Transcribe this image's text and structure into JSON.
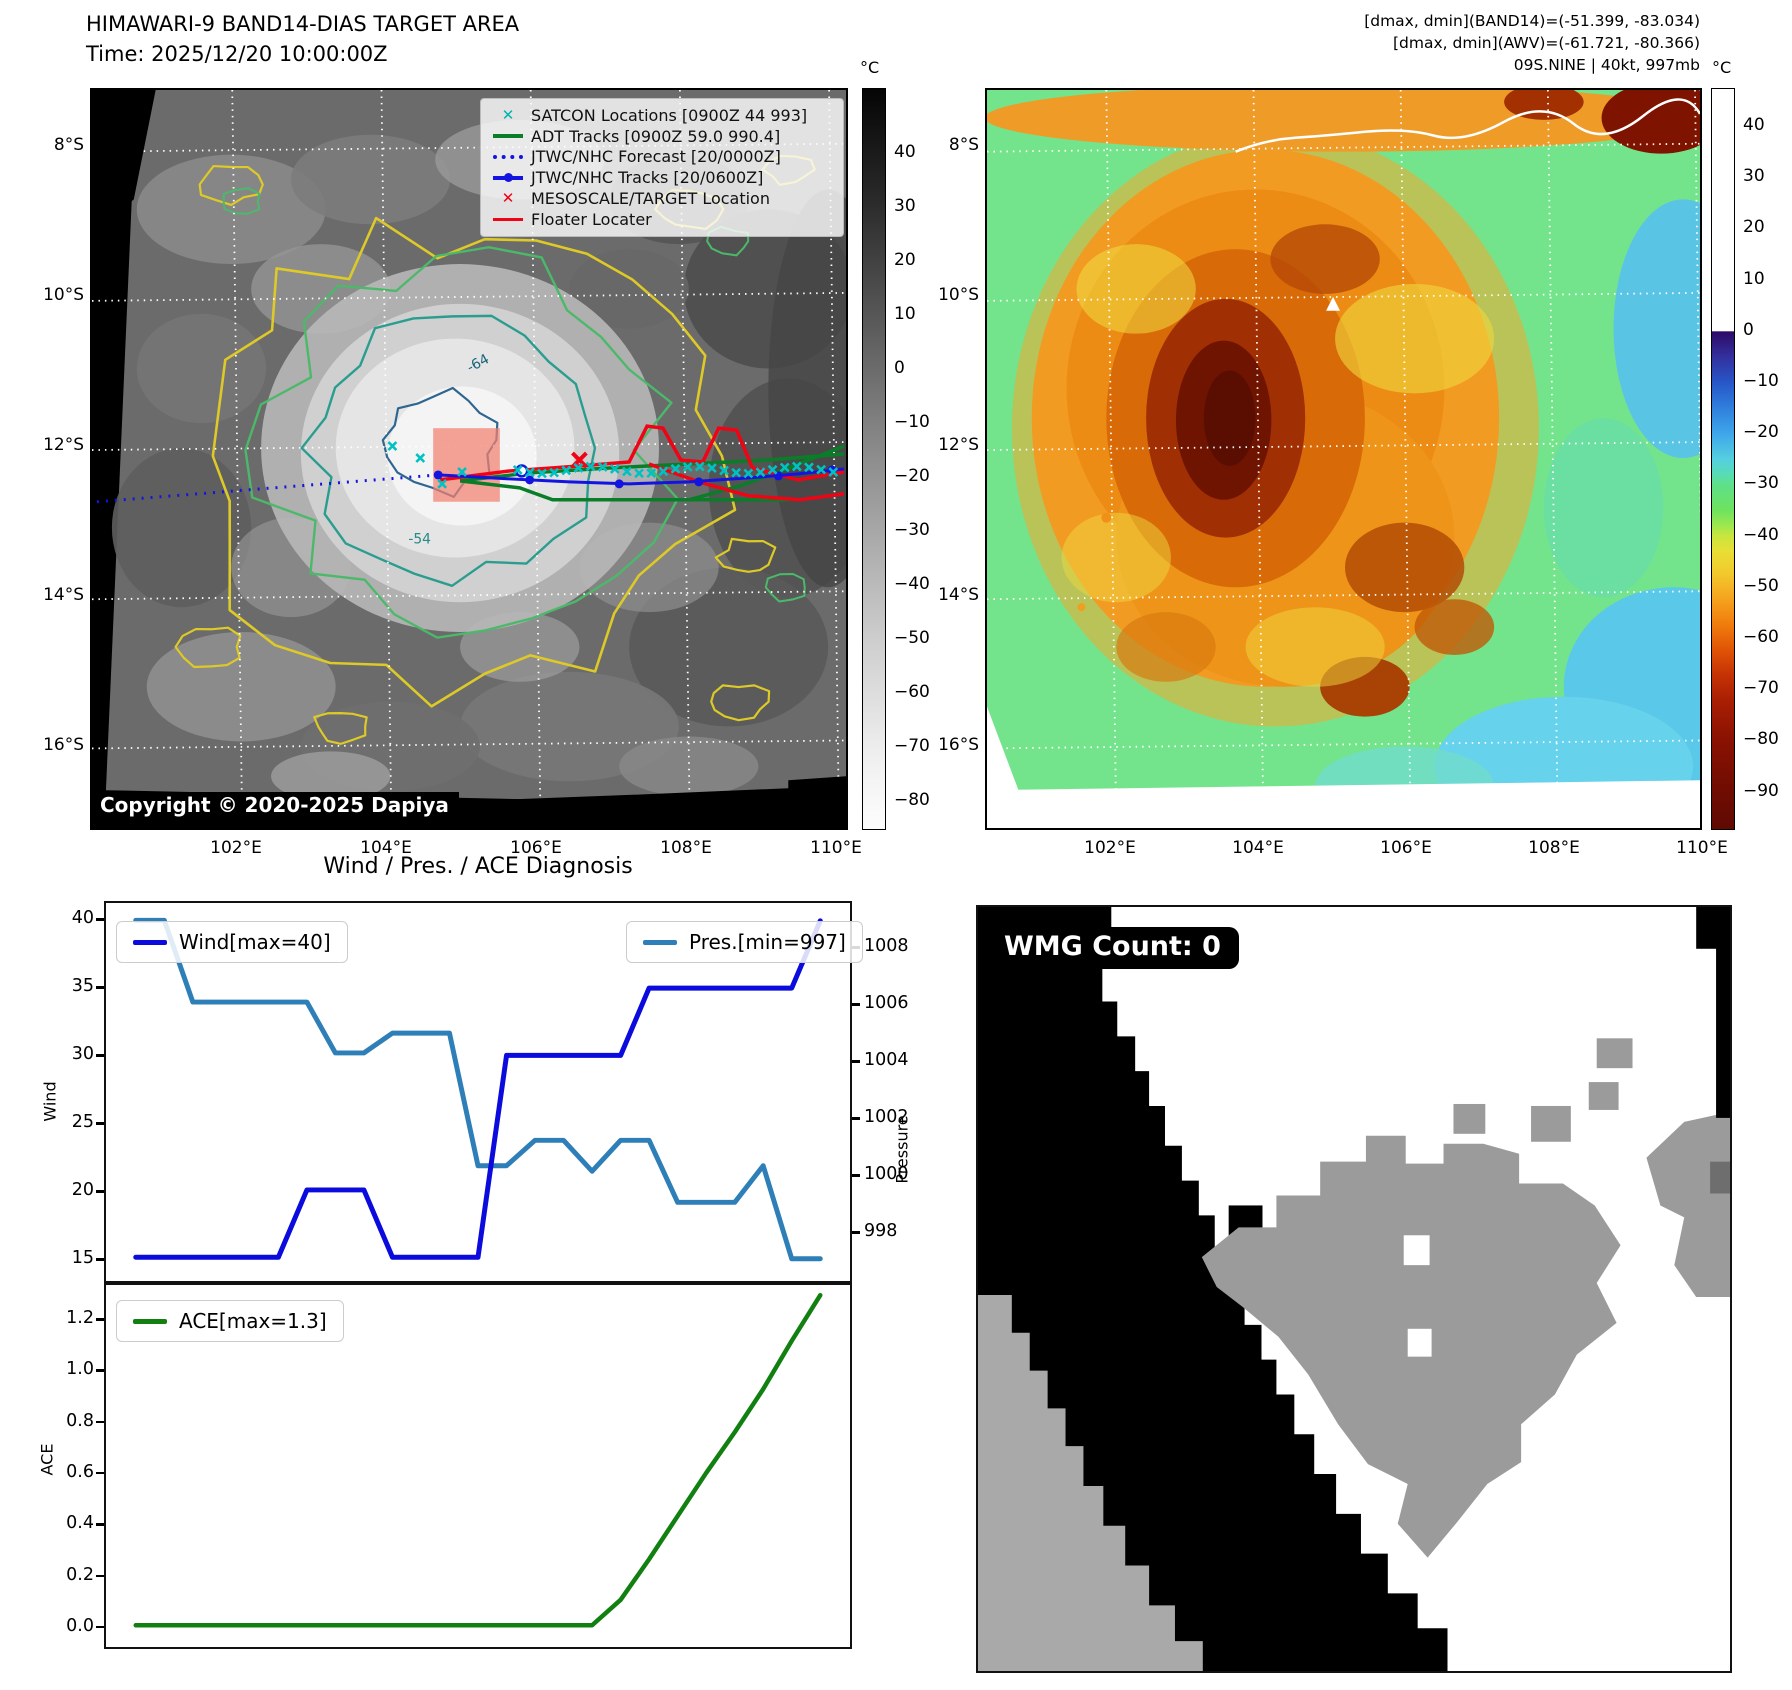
{
  "header": {
    "title": "HIMAWARI-9 BAND14-DIAS TARGET AREA",
    "time_line": "Time: 2025/12/20 10:00:00Z",
    "info_line1": "[dmax, dmin](BAND14)=(-51.399, -83.034)",
    "info_line2": "[dmax, dmin](AWV)=(-61.721, -80.366)",
    "info_line3": "09S.NINE | 40kt, 997mb"
  },
  "sat_panel": {
    "legend": [
      {
        "label": "SATCON Locations [0900Z 44 993]",
        "marker": "x",
        "color": "#00b5ad"
      },
      {
        "label": "ADT Tracks [0900Z 59.0 990.4]",
        "marker": "line",
        "color": "#0a7d28"
      },
      {
        "label": "JTWC/NHC Forecast [20/0000Z]",
        "marker": "dotted-line",
        "color": "#1414e0"
      },
      {
        "label": "JTWC/NHC Tracks [20/0600Z]",
        "marker": "line-dot",
        "color": "#1414e0"
      },
      {
        "label": "MESOSCALE/TARGET Location",
        "marker": "x",
        "color": "#f00314"
      },
      {
        "label": "Floater Locater",
        "marker": "line",
        "color": "#f00314"
      }
    ],
    "copyright": "Copyright © 2020-2025 Dapiya",
    "x_ticks": [
      "102°E",
      "104°E",
      "106°E",
      "108°E",
      "110°E"
    ],
    "y_ticks": [
      "8°S",
      "10°S",
      "12°S",
      "14°S",
      "16°S"
    ],
    "contour_labels": [
      "-64",
      "-54"
    ],
    "colorbar": {
      "unit": "°C",
      "ticks": [
        "40",
        "30",
        "20",
        "10",
        "0",
        "−10",
        "−20",
        "−30",
        "−40",
        "−50",
        "−60",
        "−70",
        "−80"
      ]
    }
  },
  "awv_panel": {
    "x_ticks": [
      "102°E",
      "104°E",
      "106°E",
      "108°E",
      "110°E"
    ],
    "y_ticks": [
      "8°S",
      "10°S",
      "12°S",
      "14°S",
      "16°S"
    ],
    "colorbar": {
      "unit": "°C",
      "ticks": [
        "40",
        "30",
        "20",
        "10",
        "0",
        "−10",
        "−20",
        "−30",
        "−40",
        "−50",
        "−60",
        "−70",
        "−80",
        "−90"
      ]
    }
  },
  "diagnosis": {
    "title": "Wind / Pres. / ACE Diagnosis",
    "wind": {
      "legend": "Wind[max=40]",
      "ylabel": "Wind",
      "color": "#0b0bdd",
      "ticks": [
        "40",
        "35",
        "30",
        "25",
        "20",
        "15"
      ]
    },
    "pres": {
      "legend": "Pres.[min=997]",
      "ylabel": "Pressure",
      "color": "#2e7fb8",
      "ticks": [
        "1008",
        "1006",
        "1004",
        "1002",
        "1000",
        "998"
      ]
    },
    "ace": {
      "legend": "ACE[max=1.3]",
      "ylabel": "ACE",
      "color": "#118011",
      "ticks": [
        "1.2",
        "1.0",
        "0.8",
        "0.6",
        "0.4",
        "0.2",
        "0.0"
      ]
    }
  },
  "wmg_panel": {
    "count_label": "WMG Count: 0"
  },
  "chart_data": [
    {
      "type": "line",
      "title": "Wind / Pres. / ACE Diagnosis (upper subplot)",
      "x_count": 25,
      "ylabel": "Wind",
      "ylim": [
        13.7,
        41.3
      ],
      "y2label": "Pressure",
      "y2lim": [
        996.4,
        1009.6
      ],
      "grid": false,
      "legend_position": "upper-left and upper-right",
      "series": [
        {
          "name": "Wind[max=40]",
          "axis": "left",
          "values": [
            15,
            15,
            15,
            15,
            15,
            15,
            20,
            20,
            20,
            15,
            15,
            15,
            15,
            30,
            30,
            30,
            30,
            30,
            35,
            35,
            35,
            35,
            35,
            35,
            40
          ]
        },
        {
          "name": "Pres.[min=997]",
          "axis": "right",
          "values": [
            1009,
            1009,
            1006.1,
            1006.1,
            1006.1,
            1006.1,
            1006.1,
            1004.3,
            1004.3,
            1005,
            1005,
            1005,
            1000.3,
            1000.3,
            1001.2,
            1001.2,
            1000.1,
            1001.2,
            1001.2,
            999,
            999,
            999,
            1000.3,
            997,
            997
          ]
        }
      ]
    },
    {
      "type": "line",
      "title": "ACE (lower subplot)",
      "x_count": 25,
      "ylabel": "ACE",
      "ylim": [
        -0.07,
        1.36
      ],
      "grid": false,
      "legend_position": "upper-left",
      "series": [
        {
          "name": "ACE[max=1.3]",
          "values": [
            0,
            0,
            0,
            0,
            0,
            0,
            0,
            0,
            0,
            0,
            0,
            0,
            0,
            0,
            0,
            0,
            0,
            0.1,
            0.26,
            0.43,
            0.6,
            0.76,
            0.93,
            1.12,
            1.3
          ]
        }
      ]
    }
  ]
}
